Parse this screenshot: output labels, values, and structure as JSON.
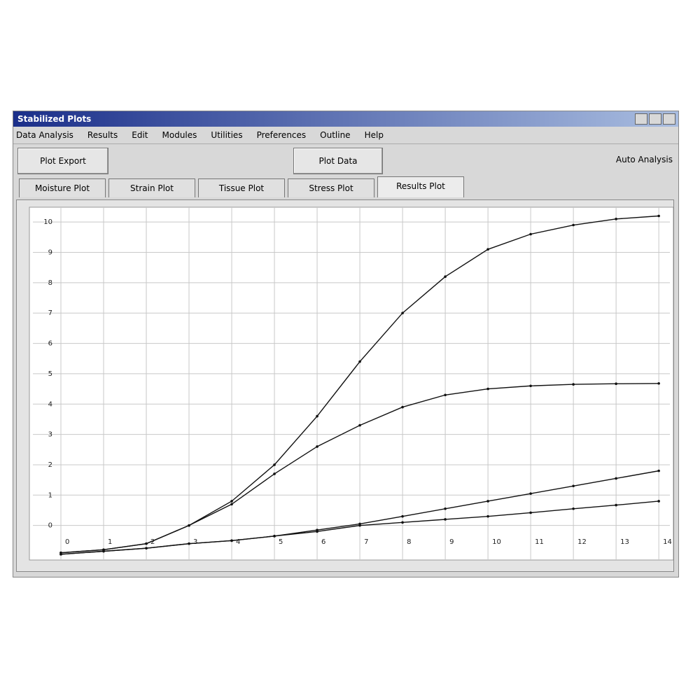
{
  "window": {
    "title": "Stabilized Plots",
    "menu": [
      "Data Analysis",
      "Results",
      "Edit",
      "Modules",
      "Utilities",
      "Preferences",
      "Outline",
      "Help"
    ],
    "buttons": [
      "Plot Export",
      "Plot Data"
    ],
    "status": "Auto Analysis",
    "tabs": [
      "Moisture Plot",
      "Strain Plot",
      "Tissue Plot",
      "Stress Plot",
      "Results Plot"
    ],
    "active_tab": 4
  },
  "chart_data": {
    "type": "line",
    "x": [
      0,
      1,
      2,
      3,
      4,
      5,
      6,
      7,
      8,
      9,
      10,
      11,
      12,
      13,
      14
    ],
    "series": [
      {
        "color": "#111111",
        "values": [
          -0.9,
          -0.8,
          -0.6,
          0.0,
          0.8,
          2.0,
          3.6,
          5.4,
          7.0,
          8.2,
          9.1,
          9.6,
          9.9,
          10.1,
          10.2
        ]
      },
      {
        "color": "#111111",
        "values": [
          -0.9,
          -0.8,
          -0.6,
          0.0,
          0.7,
          1.7,
          2.6,
          3.3,
          3.9,
          4.3,
          4.5,
          4.6,
          4.65,
          4.67,
          4.68
        ]
      },
      {
        "color": "#111111",
        "values": [
          -0.95,
          -0.85,
          -0.75,
          -0.6,
          -0.5,
          -0.35,
          -0.15,
          0.05,
          0.3,
          0.55,
          0.8,
          1.05,
          1.3,
          1.55,
          1.8
        ]
      },
      {
        "color": "#111111",
        "values": [
          -0.95,
          -0.85,
          -0.75,
          -0.6,
          -0.5,
          -0.35,
          -0.2,
          0.0,
          0.1,
          0.2,
          0.3,
          0.42,
          0.55,
          0.67,
          0.8
        ]
      }
    ],
    "xlim": [
      0,
      14.26
    ],
    "ylim": [
      -1,
      10.35
    ],
    "xticks": [
      0,
      1,
      2,
      3,
      4,
      5,
      6,
      7,
      8,
      9,
      10,
      11,
      12,
      13,
      14
    ],
    "yticks": [
      0,
      1,
      2,
      3,
      4,
      5,
      6,
      7,
      8,
      9,
      10
    ],
    "grid": true,
    "grid_color": "#c8c8c8"
  }
}
